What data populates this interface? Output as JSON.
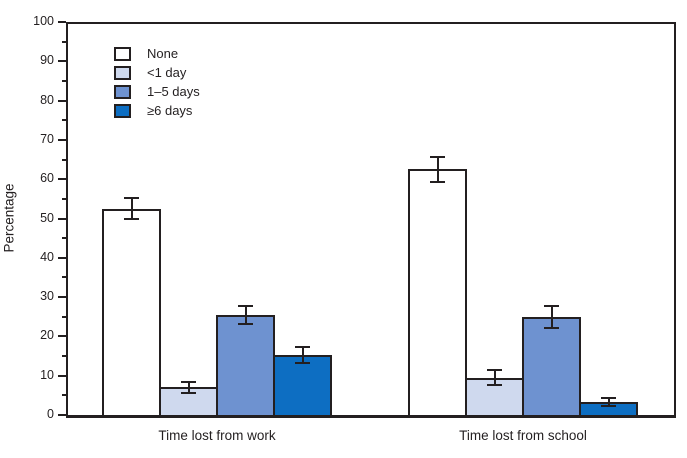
{
  "figure": {
    "background": "#ffffff",
    "axis_color": "#231f20",
    "text_color": "#231f20"
  },
  "chart_data": {
    "type": "bar",
    "title": "",
    "xlabel": "",
    "ylabel": "Percentage",
    "ylim": [
      0,
      100
    ],
    "grid": false,
    "error_bars": true,
    "legend_position": "top-left-inside",
    "y_axis": {
      "max": 100,
      "major_ticks": [
        0,
        10,
        20,
        30,
        40,
        50,
        60,
        70,
        80,
        90,
        100
      ],
      "minor_step": 5
    },
    "categories": [
      "Time lost from work",
      "Time lost from school"
    ],
    "series": [
      {
        "name": "None",
        "fill": "#ffffff",
        "values": [
          52.5,
          62.5
        ],
        "errors": [
          2.7,
          3.2
        ]
      },
      {
        "name": "<1 day",
        "fill": "#cfd9ee",
        "values": [
          7.0,
          9.5
        ],
        "errors": [
          1.4,
          1.9
        ]
      },
      {
        "name": "1–5 days",
        "fill": "#6e92d0",
        "values": [
          25.5,
          25.0
        ],
        "errors": [
          2.3,
          2.8
        ]
      },
      {
        "name": "≥6 days",
        "fill": "#0d6ec2",
        "values": [
          15.3,
          3.3
        ],
        "errors": [
          2.0,
          1.1
        ]
      }
    ]
  }
}
